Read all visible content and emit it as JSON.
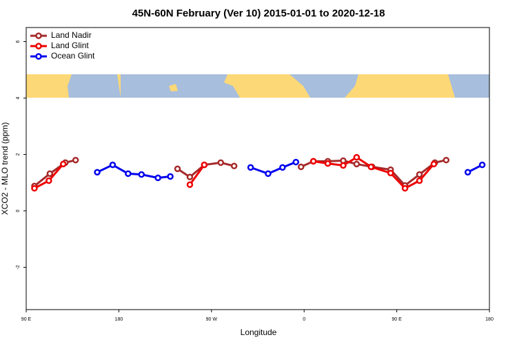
{
  "chart_data": {
    "type": "line",
    "title": "45N-60N February (Ver 10)   2015-01-01 to 2020-12-18",
    "x_label": "Longitude",
    "y_label": "XCO2 - MLO trend (ppm)",
    "xlim": [
      90,
      540
    ],
    "xticks": [
      {
        "value": 90,
        "label": "90 E"
      },
      {
        "value": 180,
        "label": "180"
      },
      {
        "value": 270,
        "label": "90 W"
      },
      {
        "value": 360,
        "label": "0"
      },
      {
        "value": 450,
        "label": "90 E"
      },
      {
        "value": 540,
        "label": "180"
      }
    ],
    "ylim": [
      -3.5,
      6.5
    ],
    "yticks": [
      -2,
      0,
      2,
      4,
      6
    ],
    "legend": "top-left",
    "series": [
      {
        "name": "Land Nadir",
        "color": "#a52a2a",
        "x": [
          98,
          113,
          128,
          138,
          null,
          237,
          249,
          263,
          279,
          292,
          null,
          357,
          369,
          383,
          398,
          411,
          426,
          444,
          458,
          472,
          487,
          498
        ],
        "values": [
          0.88,
          1.32,
          1.71,
          1.8,
          null,
          1.49,
          1.2,
          1.63,
          1.71,
          1.59,
          null,
          1.56,
          1.76,
          1.76,
          1.78,
          1.66,
          1.56,
          1.46,
          0.9,
          1.29,
          1.71,
          1.8
        ]
      },
      {
        "name": "Land Glint",
        "color": "#ee0000",
        "x": [
          98,
          112,
          126,
          null,
          249,
          263,
          null,
          369,
          383,
          398,
          411,
          425,
          444,
          458,
          472,
          486
        ],
        "values": [
          0.8,
          1.07,
          1.66,
          null,
          0.93,
          1.63,
          null,
          1.76,
          1.68,
          1.61,
          1.9,
          1.56,
          1.34,
          0.8,
          1.07,
          1.66
        ]
      },
      {
        "name": "Ocean Glint",
        "color": "#0000ee",
        "x": [
          159,
          174,
          189,
          202,
          218,
          230,
          null,
          308,
          325,
          339,
          352,
          null,
          519,
          533
        ],
        "values": [
          1.37,
          1.63,
          1.32,
          1.29,
          1.17,
          1.22,
          null,
          1.54,
          1.32,
          1.54,
          1.73,
          null,
          1.37,
          1.63
        ]
      }
    ]
  }
}
